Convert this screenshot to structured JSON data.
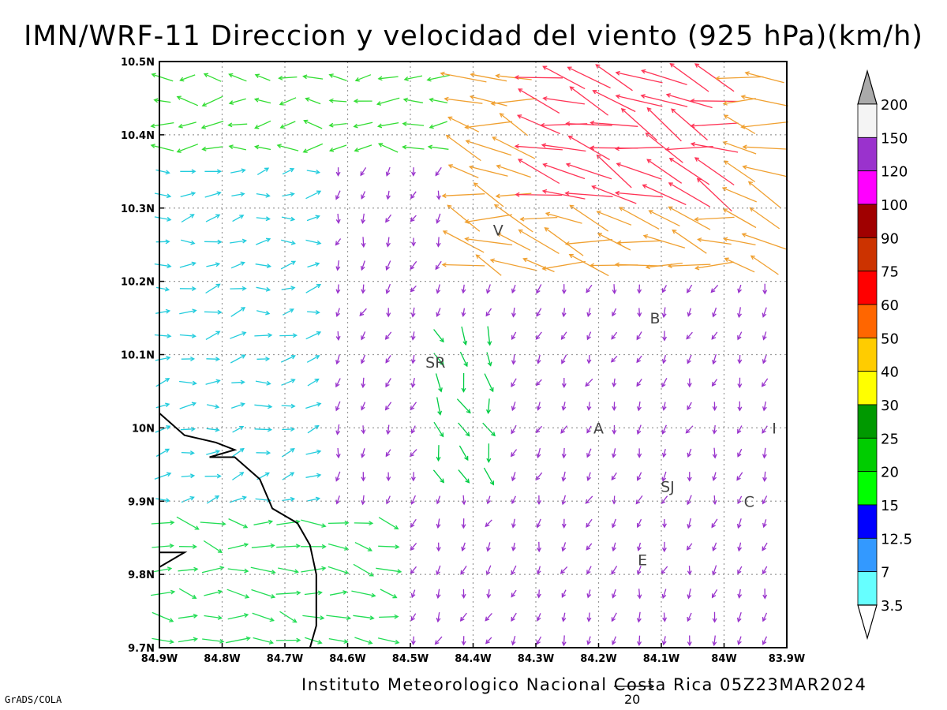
{
  "title": "IMN/WRF-11 Direccion y velocidad del viento (925 hPa)(km/h)",
  "footer": "Instituto Meteorologico Nacional Costa Rica 05Z23MAR2024",
  "credit": "GrADS/COLA",
  "reference_vector_value": "20",
  "map": {
    "lon_range": [
      -84.9,
      -83.9
    ],
    "lat_range": [
      9.7,
      10.5
    ],
    "grid": "dotted",
    "x_ticks": [
      "84.9W",
      "84.8W",
      "84.7W",
      "84.6W",
      "84.5W",
      "84.4W",
      "84.3W",
      "84.2W",
      "84.1W",
      "84W",
      "83.9W"
    ],
    "y_ticks": [
      "10.5N",
      "10.4N",
      "10.3N",
      "10.2N",
      "10.1N",
      "10N",
      "9.9N",
      "9.8N",
      "9.7N"
    ],
    "coastline_color": "#000000"
  },
  "cities": [
    {
      "label": "V",
      "lon": -84.36,
      "lat": 10.27
    },
    {
      "label": "B",
      "lon": -84.11,
      "lat": 10.15
    },
    {
      "label": "SR",
      "lon": -84.46,
      "lat": 10.09
    },
    {
      "label": "A",
      "lon": -84.2,
      "lat": 10.0
    },
    {
      "label": "I",
      "lon": -83.92,
      "lat": 10.0
    },
    {
      "label": "SJ",
      "lon": -84.09,
      "lat": 9.92
    },
    {
      "label": "C",
      "lon": -83.96,
      "lat": 9.9
    },
    {
      "label": "E",
      "lon": -84.13,
      "lat": 9.82
    }
  ],
  "colorbar": {
    "labels": [
      "200",
      "150",
      "120",
      "100",
      "90",
      "75",
      "60",
      "50",
      "40",
      "30",
      "25",
      "20",
      "15",
      "12.5",
      "7",
      "3.5"
    ],
    "colors": [
      "#f4f4f4",
      "#9a32cd",
      "#ff00ff",
      "#a00000",
      "#cc3300",
      "#ff0000",
      "#ff6600",
      "#ffcc00",
      "#ffff00",
      "#009900",
      "#00cc00",
      "#00ff00",
      "#0000ff",
      "#3399ff",
      "#66ffff"
    ],
    "top_triangle_color": "#aaaaaa",
    "bottom_triangle_color": "#ffffff"
  },
  "chart_data": {
    "type": "vector_field",
    "description_units": "km/h",
    "xlim": [
      -84.9,
      -83.9
    ],
    "ylim": [
      9.7,
      10.5
    ],
    "regions": [
      {
        "name": "northeast_jet",
        "direction_deg": 290,
        "speed": 60,
        "color": "#ff3355"
      },
      {
        "name": "northeast_outer",
        "direction_deg": 285,
        "speed": 45,
        "color": "#f0a030"
      },
      {
        "name": "northwest_flow",
        "direction_deg": 270,
        "speed": 18,
        "color": "#33dd33"
      },
      {
        "name": "west_lowland",
        "direction_deg": 80,
        "speed": 12,
        "color": "#22ccdd"
      },
      {
        "name": "southwest_coast",
        "direction_deg": 100,
        "speed": 20,
        "color": "#22dd55"
      },
      {
        "name": "central_valley",
        "direction_deg": 200,
        "speed": 5,
        "color": "#9933cc"
      },
      {
        "name": "valley_channel",
        "direction_deg": 160,
        "speed": 15,
        "color": "#00cc44"
      }
    ]
  }
}
